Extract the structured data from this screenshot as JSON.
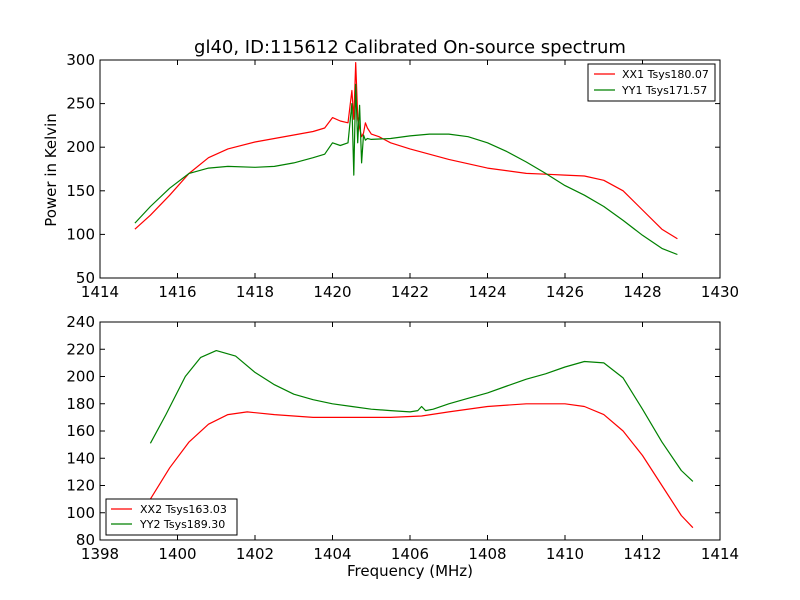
{
  "colors": {
    "red": "#ff0000",
    "green": "#008000"
  },
  "chart_data": [
    {
      "type": "line",
      "title": "gl40, ID:115612 Calibrated On-source spectrum",
      "xlabel": "",
      "ylabel": "Power in Kelvin",
      "xlim": [
        1414,
        1430
      ],
      "ylim": [
        50,
        300
      ],
      "xticks": [
        1414,
        1416,
        1418,
        1420,
        1422,
        1424,
        1426,
        1428,
        1430
      ],
      "yticks": [
        50,
        100,
        150,
        200,
        250,
        300
      ],
      "legend_position": "top-right",
      "series": [
        {
          "name": "XX1 Tsys180.07",
          "color": "#ff0000",
          "x": [
            1414.9,
            1415.3,
            1415.8,
            1416.3,
            1416.8,
            1417.3,
            1418.0,
            1418.5,
            1419.0,
            1419.5,
            1419.8,
            1420.0,
            1420.2,
            1420.4,
            1420.5,
            1420.55,
            1420.6,
            1420.65,
            1420.7,
            1420.75,
            1420.8,
            1420.85,
            1420.9,
            1421.0,
            1421.2,
            1421.5,
            1422.0,
            1423.0,
            1424.0,
            1425.0,
            1425.5,
            1426.0,
            1426.5,
            1427.0,
            1427.5,
            1428.0,
            1428.5,
            1428.9
          ],
          "y": [
            106,
            122,
            145,
            170,
            188,
            198,
            206,
            210,
            214,
            218,
            222,
            234,
            230,
            228,
            265,
            232,
            297,
            235,
            222,
            212,
            216,
            228,
            222,
            215,
            212,
            205,
            198,
            186,
            176,
            170,
            169,
            168,
            167,
            162,
            150,
            128,
            106,
            95
          ]
        },
        {
          "name": "YY1 Tsys171.57",
          "color": "#008000",
          "x": [
            1414.9,
            1415.3,
            1415.8,
            1416.3,
            1416.8,
            1417.3,
            1418.0,
            1418.5,
            1419.0,
            1419.5,
            1419.8,
            1420.0,
            1420.2,
            1420.4,
            1420.5,
            1420.55,
            1420.6,
            1420.65,
            1420.7,
            1420.75,
            1420.8,
            1420.85,
            1420.9,
            1421.0,
            1421.5,
            1422.0,
            1422.5,
            1423.0,
            1423.5,
            1424.0,
            1424.5,
            1425.0,
            1425.5,
            1426.0,
            1426.5,
            1427.0,
            1427.5,
            1428.0,
            1428.5,
            1428.9
          ],
          "y": [
            113,
            132,
            153,
            170,
            176,
            178,
            177,
            178,
            182,
            188,
            192,
            205,
            202,
            205,
            250,
            168,
            272,
            205,
            248,
            182,
            214,
            208,
            210,
            209,
            210,
            213,
            215,
            215,
            212,
            205,
            195,
            183,
            170,
            156,
            145,
            132,
            116,
            99,
            84,
            77
          ]
        }
      ]
    },
    {
      "type": "line",
      "title": "",
      "xlabel": "Frequency (MHz)",
      "ylabel": "",
      "xlim": [
        1398,
        1414
      ],
      "ylim": [
        80,
        240
      ],
      "xticks": [
        1398,
        1400,
        1402,
        1404,
        1406,
        1408,
        1410,
        1412,
        1414
      ],
      "yticks": [
        80,
        100,
        120,
        140,
        160,
        180,
        200,
        220,
        240
      ],
      "legend_position": "bottom-left",
      "series": [
        {
          "name": "XX2 Tsys163.03",
          "color": "#ff0000",
          "x": [
            1399.3,
            1399.8,
            1400.3,
            1400.8,
            1401.3,
            1401.8,
            1402.5,
            1403.5,
            1404.5,
            1405.5,
            1406.3,
            1407.0,
            1408.0,
            1409.0,
            1409.5,
            1410.0,
            1410.5,
            1411.0,
            1411.5,
            1412.0,
            1412.5,
            1413.0,
            1413.3
          ],
          "y": [
            110,
            133,
            152,
            165,
            172,
            174,
            172,
            170,
            170,
            170,
            171,
            174,
            178,
            180,
            180,
            180,
            178,
            172,
            160,
            142,
            120,
            98,
            89
          ]
        },
        {
          "name": "YY2 Tsys189.30",
          "color": "#008000",
          "x": [
            1399.3,
            1399.7,
            1400.2,
            1400.6,
            1401.0,
            1401.5,
            1402.0,
            1402.5,
            1403.0,
            1403.5,
            1404.0,
            1404.5,
            1405.0,
            1405.5,
            1406.0,
            1406.2,
            1406.3,
            1406.4,
            1406.6,
            1407.0,
            1407.5,
            1408.0,
            1408.5,
            1409.0,
            1409.5,
            1410.0,
            1410.5,
            1411.0,
            1411.5,
            1412.0,
            1412.5,
            1413.0,
            1413.3
          ],
          "y": [
            151,
            172,
            200,
            214,
            219,
            215,
            203,
            194,
            187,
            183,
            180,
            178,
            176,
            175,
            174,
            175,
            178,
            175,
            176,
            180,
            184,
            188,
            193,
            198,
            202,
            207,
            211,
            210,
            199,
            176,
            152,
            131,
            123
          ]
        }
      ]
    }
  ]
}
